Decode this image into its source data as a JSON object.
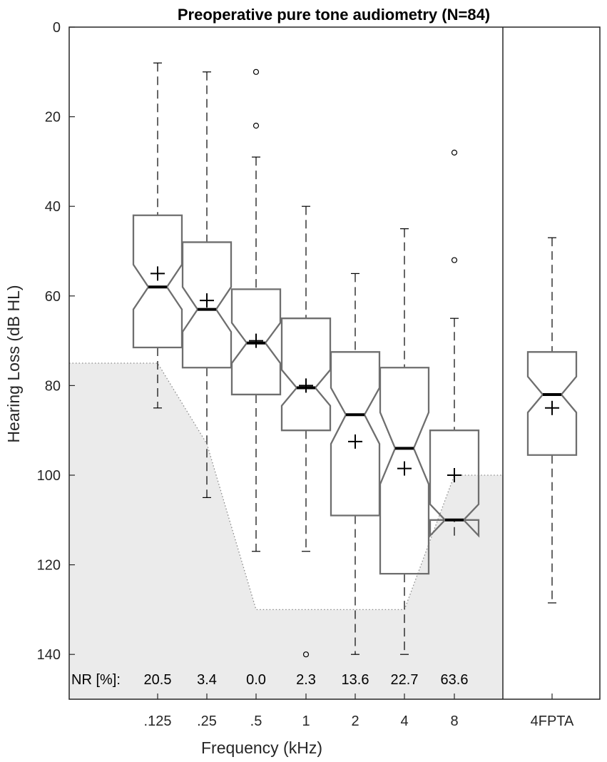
{
  "chart_data": {
    "type": "boxplot",
    "title": "Preoperative pure tone audiometry (N=84)",
    "xlabel": "Frequency (kHz)",
    "ylabel": "Hearing Loss (dB HL)",
    "ylim": [
      0,
      150
    ],
    "y_reversed": true,
    "yticks": [
      0,
      20,
      40,
      60,
      80,
      100,
      120,
      140
    ],
    "categories": [
      ".125",
      ".25",
      ".5",
      "1",
      "2",
      "4",
      "8",
      "4FPTA"
    ],
    "boxes": [
      {
        "label": ".125",
        "whisker_low": 8,
        "q1": 42,
        "median": 58,
        "q3": 71.5,
        "whisker_high": 85,
        "mean": 55,
        "notch_low": 63,
        "notch_high": 53,
        "outliers": []
      },
      {
        "label": ".25",
        "whisker_low": 10,
        "q1": 48,
        "median": 63,
        "q3": 76,
        "whisker_high": 105,
        "mean": 61,
        "notch_low": 68,
        "notch_high": 58,
        "outliers": []
      },
      {
        "label": ".5",
        "whisker_low": 29,
        "q1": 58.5,
        "median": 70.5,
        "q3": 82,
        "whisker_high": 117,
        "mean": 70,
        "notch_low": 75,
        "notch_high": 66,
        "outliers": [
          10,
          22
        ]
      },
      {
        "label": "1",
        "whisker_low": 40,
        "q1": 65,
        "median": 80.5,
        "q3": 90,
        "whisker_high": 117,
        "mean": 80,
        "notch_low": 84.5,
        "notch_high": 76.5,
        "outliers": [
          140
        ]
      },
      {
        "label": "2",
        "whisker_low": 55,
        "q1": 72.5,
        "median": 86.5,
        "q3": 109,
        "whisker_high": 140,
        "mean": 92.5,
        "notch_low": 93,
        "notch_high": 80.5,
        "outliers": []
      },
      {
        "label": "4",
        "whisker_low": 45,
        "q1": 76,
        "median": 94,
        "q3": 122,
        "whisker_high": 140,
        "mean": 98.5,
        "notch_low": 102,
        "notch_high": 86,
        "outliers": []
      },
      {
        "label": "8",
        "whisker_low": 65,
        "q1": 90,
        "median": 110,
        "q3": 110,
        "whisker_high": 110,
        "mean": 100,
        "notch_low": 113.5,
        "notch_high": 106.5,
        "outliers": [
          28,
          52
        ]
      },
      {
        "label": "4FPTA",
        "whisker_low": 47,
        "q1": 72.5,
        "median": 82,
        "q3": 95.5,
        "whisker_high": 128.5,
        "mean": 85,
        "notch_low": 86,
        "notch_high": 78,
        "outliers": []
      }
    ],
    "audiometer_limit": [
      {
        "freq": ".125",
        "value": 75
      },
      {
        "freq": ".25",
        "value": 93
      },
      {
        "freq": ".5",
        "value": 130
      },
      {
        "freq": "1",
        "value": 130
      },
      {
        "freq": "2",
        "value": 130
      },
      {
        "freq": "4",
        "value": 130
      },
      {
        "freq": "8",
        "value": 100
      }
    ],
    "nr_label": "NR [%]:",
    "nr_values": [
      "20.5",
      "3.4",
      "0.0",
      "2.3",
      "13.6",
      "22.7",
      "63.6"
    ],
    "colors": {
      "box": "#6e6e6e",
      "median": "#000000",
      "shade": "#ebebeb",
      "axis": "#262626"
    }
  }
}
